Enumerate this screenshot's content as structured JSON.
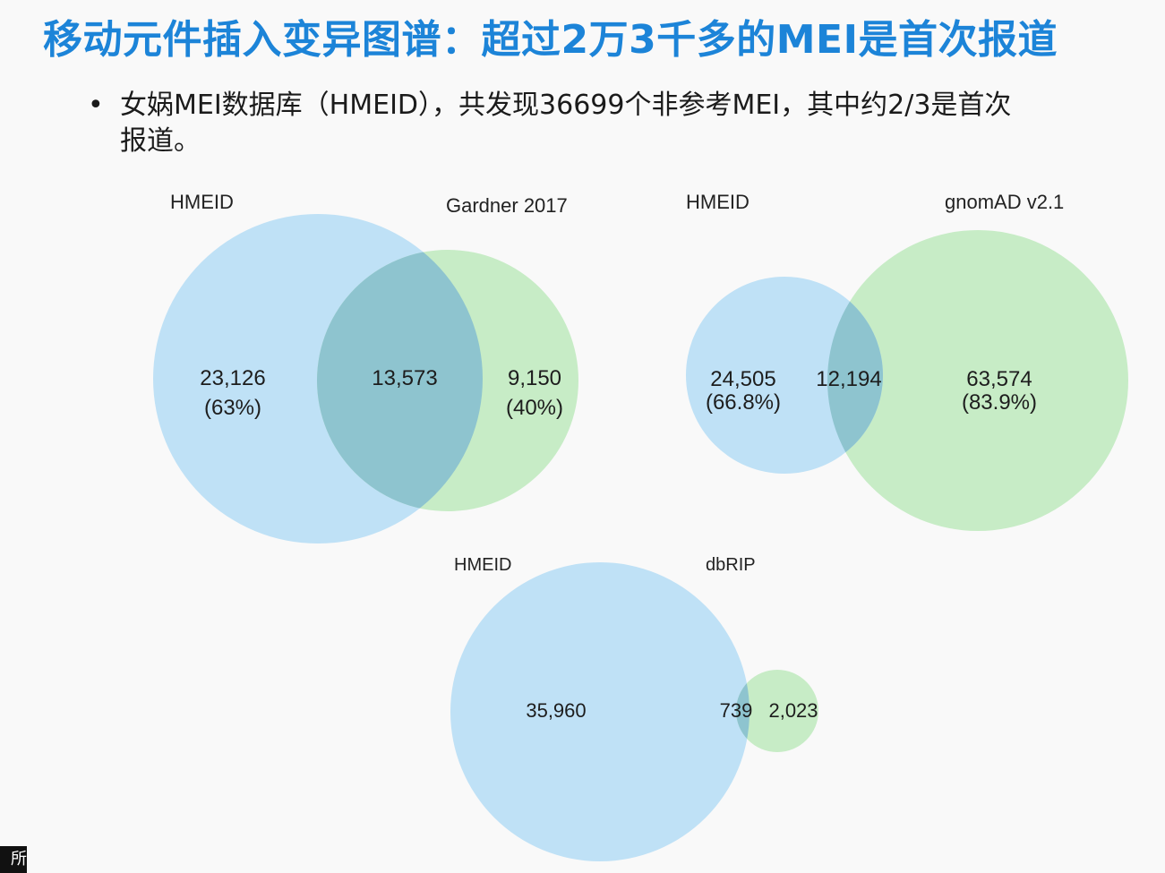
{
  "slide": {
    "title": "移动元件插入变异图谱：超过2万3千多的MEI是首次报道",
    "bullet_marker": "•",
    "bullet_text": "女娲MEI数据库（HMEID），共发现36699个非参考MEI，其中约2/3是首次报道。"
  },
  "colors": {
    "title": "#1c84d8",
    "set_a": "#bfe1f6",
    "set_b": "#c7ecc6",
    "overlap": "#8ec4cf"
  },
  "diagrams": [
    {
      "set_a_label": "HMEID",
      "set_b_label": "Gardner 2017",
      "only_a": "23,126",
      "only_a_pct": "(63%)",
      "overlap": "13,573",
      "only_b": "9,150",
      "only_b_pct": "(40%)"
    },
    {
      "set_a_label": "HMEID",
      "set_b_label": "gnomAD v2.1",
      "only_a": "24,505",
      "only_a_pct": "(66.8%)",
      "overlap": "12,194",
      "only_b": "63,574",
      "only_b_pct": "(83.9%)"
    },
    {
      "set_a_label": "HMEID",
      "set_b_label": "dbRIP",
      "only_a": "35,960",
      "overlap": "739",
      "only_b": "2,023"
    }
  ],
  "corner_mark": "所"
}
